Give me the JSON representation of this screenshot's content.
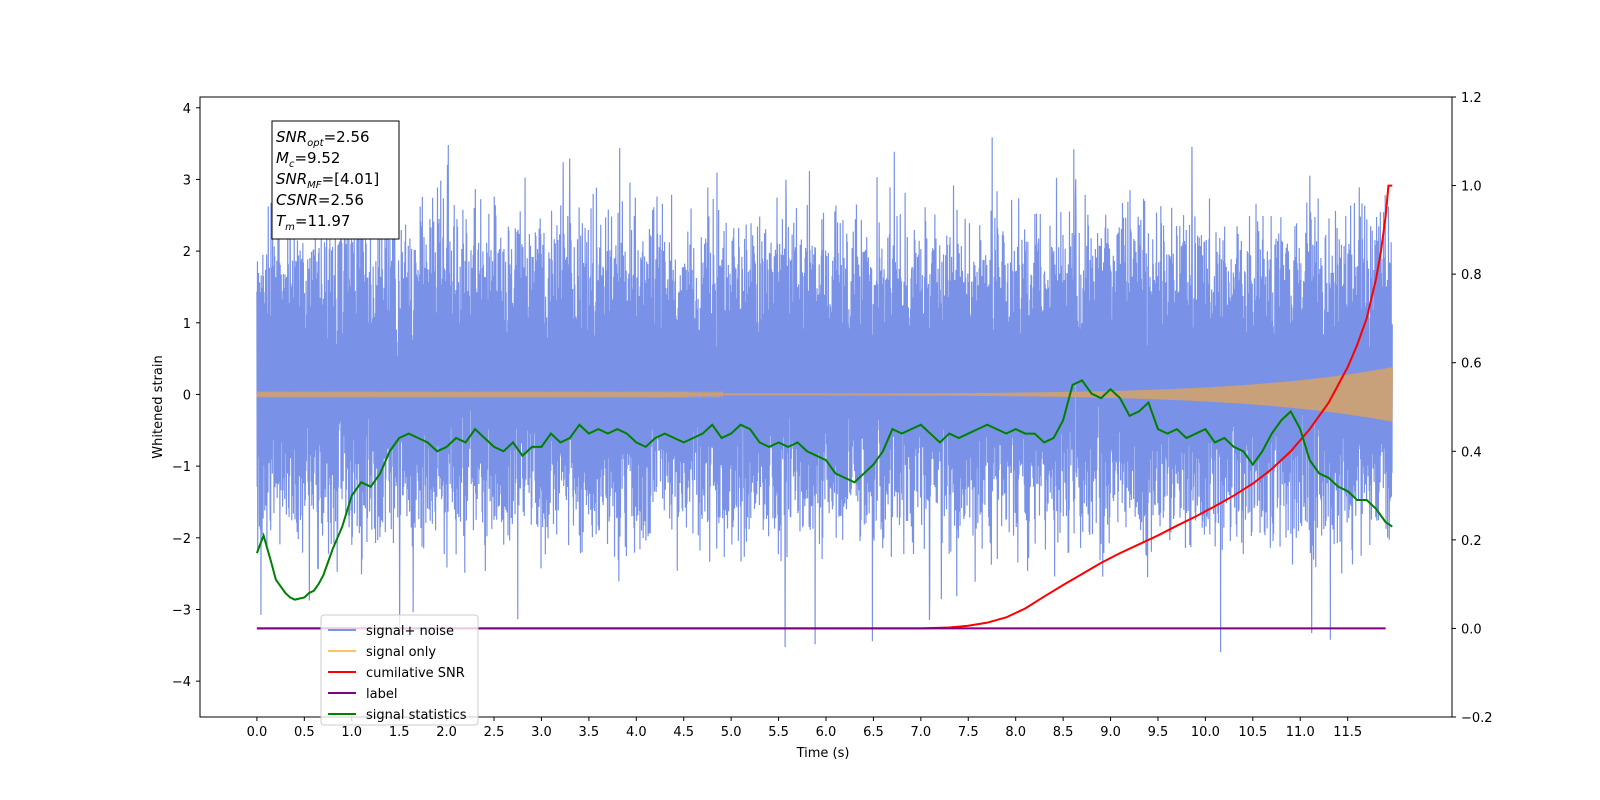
{
  "chart_data": {
    "type": "line",
    "xlabel": "Time (s)",
    "ylabel": "Whitened strain",
    "xlim": [
      -0.6,
      12.6
    ],
    "ylim": [
      -4.5,
      4.15
    ],
    "y2lim": [
      -0.2,
      1.2
    ],
    "grid": false,
    "legend_position": "bottom-left",
    "x_ticks": [
      "0.0",
      "0.5",
      "1.0",
      "1.5",
      "2.0",
      "2.5",
      "3.0",
      "3.5",
      "4.0",
      "4.5",
      "5.0",
      "5.5",
      "6.0",
      "6.5",
      "7.0",
      "7.5",
      "8.0",
      "8.5",
      "9.0",
      "9.5",
      "10.0",
      "10.5",
      "11.0",
      "11.5"
    ],
    "y_ticks": [
      "4",
      "3",
      "2",
      "1",
      "0",
      "−1",
      "−2",
      "−3",
      "−4"
    ],
    "y2_ticks": [
      "1.2",
      "1.0",
      "0.8",
      "0.6",
      "0.4",
      "0.2",
      "0.0",
      "−0.2"
    ],
    "annotation": {
      "lines": [
        {
          "sym": "SNR",
          "sub": "opt",
          "val": "=2.56"
        },
        {
          "sym": "M",
          "sub": "c",
          "val": "=9.52"
        },
        {
          "sym": "SNR",
          "sub": "MF",
          "val": "=[4.01]"
        },
        {
          "sym": "CSNR",
          "sub": "",
          "val": "=2.56"
        },
        {
          "sym": "T",
          "sub": "m",
          "val": "=11.97"
        }
      ]
    },
    "legend": [
      {
        "label": "signal+ noise",
        "color": "#6a86e4"
      },
      {
        "label": "signal only",
        "color": "#ffc16a"
      },
      {
        "label": "cumilative SNR",
        "color": "#ff0000"
      },
      {
        "label": "label",
        "color": "#800080"
      },
      {
        "label": "signal statistics",
        "color": "#008000"
      }
    ],
    "series": [
      {
        "name": "signal+ noise",
        "axis": "left",
        "color": "#6a86e4",
        "style": "noise",
        "x_range": [
          0.0,
          11.97
        ],
        "typical_range": [
          -1.7,
          2.1
        ],
        "extreme_min": -3.75,
        "extreme_max": 3.75
      },
      {
        "name": "signal only",
        "axis": "left",
        "color": "#c8a07a",
        "style": "chirp",
        "x_range": [
          0.0,
          11.97
        ],
        "amplitude_start": 0.01,
        "amplitude_end": 0.38
      },
      {
        "name": "cumilative SNR",
        "axis": "right",
        "color": "#ff0000",
        "x": [
          0.0,
          6.5,
          7.0,
          7.3,
          7.5,
          7.7,
          7.9,
          8.1,
          8.3,
          8.5,
          8.7,
          8.9,
          9.1,
          9.3,
          9.5,
          9.7,
          9.9,
          10.1,
          10.3,
          10.5,
          10.7,
          10.9,
          11.1,
          11.3,
          11.5,
          11.6,
          11.7,
          11.8,
          11.85,
          11.9,
          11.93,
          11.95,
          11.97
        ],
        "y": [
          0.0,
          0.0,
          0.0,
          0.002,
          0.006,
          0.013,
          0.025,
          0.045,
          0.072,
          0.098,
          0.123,
          0.148,
          0.17,
          0.19,
          0.21,
          0.232,
          0.253,
          0.276,
          0.3,
          0.327,
          0.36,
          0.4,
          0.45,
          0.51,
          0.59,
          0.64,
          0.7,
          0.79,
          0.85,
          0.93,
          1.0,
          1.0,
          1.0
        ]
      },
      {
        "name": "label",
        "axis": "right",
        "color": "#800080",
        "x": [
          0.0,
          11.9
        ],
        "y": [
          0.0,
          0.0
        ]
      },
      {
        "name": "signal statistics",
        "axis": "right",
        "color": "#008000",
        "x": [
          0.0,
          0.07,
          0.15,
          0.2,
          0.3,
          0.35,
          0.4,
          0.5,
          0.55,
          0.6,
          0.65,
          0.7,
          0.75,
          0.8,
          0.9,
          1.0,
          1.1,
          1.2,
          1.3,
          1.4,
          1.5,
          1.6,
          1.7,
          1.8,
          1.9,
          2.0,
          2.1,
          2.2,
          2.3,
          2.4,
          2.5,
          2.6,
          2.7,
          2.8,
          2.9,
          3.0,
          3.1,
          3.2,
          3.3,
          3.4,
          3.5,
          3.6,
          3.7,
          3.8,
          3.9,
          4.0,
          4.1,
          4.2,
          4.3,
          4.4,
          4.5,
          4.6,
          4.7,
          4.8,
          4.9,
          5.0,
          5.1,
          5.2,
          5.3,
          5.4,
          5.5,
          5.6,
          5.7,
          5.8,
          5.9,
          6.0,
          6.1,
          6.2,
          6.3,
          6.4,
          6.5,
          6.6,
          6.7,
          6.8,
          6.9,
          7.0,
          7.1,
          7.2,
          7.3,
          7.4,
          7.5,
          7.6,
          7.7,
          7.8,
          7.9,
          8.0,
          8.1,
          8.2,
          8.3,
          8.4,
          8.5,
          8.6,
          8.7,
          8.8,
          8.9,
          9.0,
          9.1,
          9.2,
          9.3,
          9.4,
          9.5,
          9.6,
          9.7,
          9.8,
          9.9,
          10.0,
          10.1,
          10.2,
          10.3,
          10.4,
          10.5,
          10.6,
          10.7,
          10.8,
          10.9,
          11.0,
          11.1,
          11.2,
          11.3,
          11.4,
          11.5,
          11.6,
          11.7,
          11.8,
          11.9,
          11.97
        ],
        "y": [
          0.17,
          0.21,
          0.15,
          0.11,
          0.08,
          0.07,
          0.065,
          0.07,
          0.08,
          0.085,
          0.1,
          0.12,
          0.15,
          0.18,
          0.23,
          0.3,
          0.33,
          0.32,
          0.35,
          0.4,
          0.43,
          0.44,
          0.43,
          0.42,
          0.4,
          0.41,
          0.43,
          0.42,
          0.45,
          0.43,
          0.41,
          0.4,
          0.42,
          0.39,
          0.41,
          0.41,
          0.44,
          0.42,
          0.43,
          0.46,
          0.44,
          0.45,
          0.44,
          0.45,
          0.44,
          0.42,
          0.41,
          0.43,
          0.44,
          0.43,
          0.42,
          0.43,
          0.44,
          0.46,
          0.43,
          0.44,
          0.46,
          0.45,
          0.42,
          0.41,
          0.42,
          0.41,
          0.42,
          0.4,
          0.39,
          0.38,
          0.35,
          0.34,
          0.33,
          0.35,
          0.37,
          0.4,
          0.45,
          0.44,
          0.45,
          0.46,
          0.44,
          0.42,
          0.44,
          0.43,
          0.44,
          0.45,
          0.46,
          0.45,
          0.44,
          0.45,
          0.44,
          0.44,
          0.42,
          0.43,
          0.47,
          0.55,
          0.56,
          0.53,
          0.52,
          0.54,
          0.52,
          0.48,
          0.49,
          0.51,
          0.45,
          0.44,
          0.45,
          0.43,
          0.44,
          0.45,
          0.42,
          0.43,
          0.41,
          0.4,
          0.37,
          0.4,
          0.44,
          0.47,
          0.49,
          0.45,
          0.38,
          0.35,
          0.34,
          0.32,
          0.31,
          0.29,
          0.29,
          0.27,
          0.24,
          0.23
        ]
      }
    ]
  }
}
